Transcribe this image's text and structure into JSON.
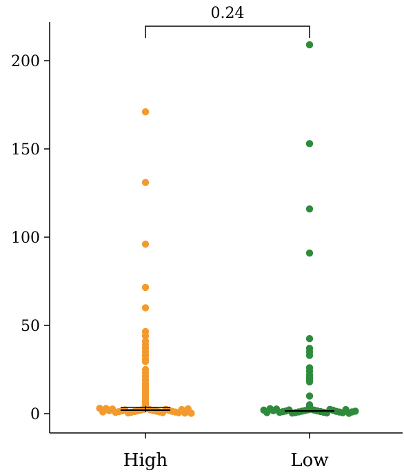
{
  "chart_data": {
    "type": "scatter",
    "subtype": "strip-plot",
    "categories": [
      "High",
      "Low"
    ],
    "colors": {
      "High": "#f39a2e",
      "Low": "#2e8b3c"
    },
    "ylim": [
      0,
      220
    ],
    "yticks": [
      0,
      50,
      100,
      150,
      200
    ],
    "ytick_labels": [
      "0",
      "50",
      "100",
      "150",
      "200"
    ],
    "xlabel": "",
    "ylabel": "",
    "grid": false,
    "annotation": {
      "text": "0.24",
      "between": [
        "High",
        "Low"
      ]
    },
    "series": [
      {
        "category": "High",
        "median": 2,
        "outliers": [
          171,
          131,
          96,
          71.5,
          60,
          46.5,
          44,
          41,
          39,
          37,
          35,
          33,
          31,
          29.5,
          25,
          23,
          21,
          19,
          17,
          15.5,
          14,
          12.5,
          11,
          9.5,
          8,
          7,
          6,
          5,
          4.2,
          3.5
        ],
        "spread": [
          2.8,
          2.5,
          2.2,
          2.0,
          1.8,
          1.6,
          1.4,
          1.2,
          1.0,
          0.8,
          0.6,
          0.4,
          2.4,
          2.1,
          1.9,
          1.5,
          1.3,
          1.1,
          0.9,
          0.7,
          0.5,
          2.6,
          2.3,
          1.7,
          0.3,
          2.9,
          2.7,
          1.0,
          0.2,
          3.0
        ]
      },
      {
        "category": "Low",
        "median": 1.5,
        "outliers": [
          209,
          153,
          116,
          91,
          42.5,
          37,
          35,
          33,
          26,
          24,
          22,
          20.5,
          19.5,
          18,
          10,
          5,
          3.8
        ],
        "spread": [
          2.5,
          2.2,
          2.0,
          1.8,
          1.6,
          1.4,
          1.2,
          1.0,
          0.8,
          0.6,
          0.4,
          0.3,
          2.4,
          2.1,
          1.9,
          1.5,
          1.3,
          1.1,
          0.9,
          0.7,
          0.5,
          2.6,
          2.3,
          1.7,
          0.2,
          2.8,
          1.0,
          0.6,
          1.4,
          2.0
        ]
      }
    ]
  }
}
